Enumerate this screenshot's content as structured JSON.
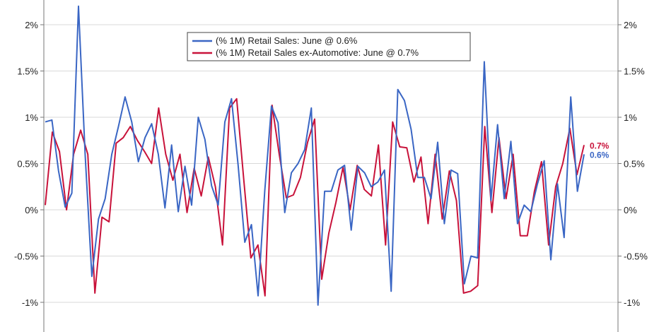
{
  "chart_data": {
    "type": "line",
    "title": "",
    "xlabel": "",
    "ylabel": "",
    "ylim": [
      -1.25,
      2.25
    ],
    "yticks": [
      -1,
      -0.5,
      0,
      0.5,
      1,
      1.5,
      2
    ],
    "ytick_labels": [
      "-1%",
      "-0.5%",
      "0%",
      "0.5%",
      "1%",
      "1.5%",
      "2%"
    ],
    "grid": true,
    "legend_position": "top-center",
    "series": [
      {
        "name": "(% 1M) Retail Sales: June @ 0.6%",
        "color": "#3a66c4",
        "end_label": "0.6%",
        "values": [
          0.95,
          0.97,
          0.42,
          0.03,
          0.18,
          2.2,
          0.6,
          -0.72,
          -0.1,
          0.12,
          0.6,
          0.9,
          1.22,
          0.95,
          0.52,
          0.78,
          0.93,
          0.6,
          0.02,
          0.7,
          -0.02,
          0.47,
          0.05,
          1.0,
          0.76,
          0.26,
          0.05,
          0.95,
          1.2,
          0.48,
          -0.35,
          -0.16,
          -0.93,
          0.2,
          1.12,
          0.94,
          -0.03,
          0.4,
          0.5,
          0.65,
          1.1,
          -1.03,
          0.2,
          0.2,
          0.43,
          0.48,
          -0.22,
          0.47,
          0.4,
          0.25,
          0.3,
          0.43,
          -0.88,
          1.3,
          1.18,
          0.87,
          0.35,
          0.35,
          0.12,
          0.73,
          -0.15,
          0.43,
          0.39,
          -0.8,
          -0.5,
          -0.52,
          1.6,
          0.1,
          0.92,
          0.12,
          0.74,
          -0.15,
          0.05,
          -0.02,
          0.28,
          0.53,
          -0.54,
          0.28,
          -0.3,
          1.22,
          0.2,
          0.6
        ]
      },
      {
        "name": "(% 1M) Retail Sales ex-Automotive: June @ 0.7%",
        "color": "#c8123a",
        "end_label": "0.7%",
        "values": [
          0.05,
          0.84,
          0.63,
          0.0,
          0.6,
          0.86,
          0.6,
          -0.9,
          -0.08,
          -0.13,
          0.72,
          0.78,
          0.9,
          0.75,
          0.63,
          0.5,
          1.1,
          0.6,
          0.32,
          0.6,
          -0.03,
          0.45,
          0.15,
          0.57,
          0.25,
          -0.38,
          1.1,
          1.2,
          0.33,
          -0.52,
          -0.38,
          -0.93,
          1.13,
          0.6,
          0.13,
          0.16,
          0.35,
          0.73,
          0.98,
          -0.75,
          -0.25,
          0.08,
          0.46,
          0.0,
          0.48,
          0.22,
          0.15,
          0.7,
          -0.38,
          0.95,
          0.68,
          0.67,
          0.3,
          0.57,
          -0.15,
          0.6,
          -0.1,
          0.42,
          0.1,
          -0.9,
          -0.88,
          -0.82,
          0.9,
          -0.03,
          0.78,
          0.12,
          0.6,
          -0.28,
          -0.28,
          0.2,
          0.52,
          -0.38,
          0.25,
          0.5,
          0.88,
          0.38,
          0.7
        ]
      }
    ]
  }
}
